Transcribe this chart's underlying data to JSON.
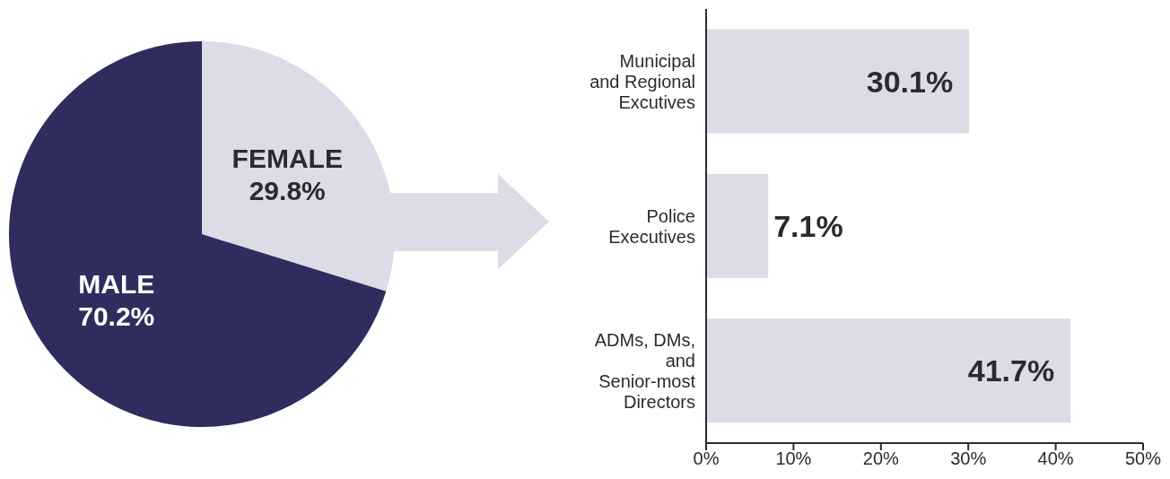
{
  "chart_data": [
    {
      "type": "pie",
      "categories": [
        "FEMALE",
        "MALE"
      ],
      "values": [
        29.8,
        70.2
      ],
      "colors": [
        "#dddbe6",
        "#2e2d5e"
      ],
      "value_labels": [
        "29.8%",
        "70.2%"
      ],
      "legend": false
    },
    {
      "type": "bar",
      "orientation": "horizontal",
      "categories": [
        "Municipal and Regional Excutives",
        "Police Executives",
        "ADMs, DMs, and Senior-most Directors"
      ],
      "values": [
        30.1,
        7.1,
        41.7
      ],
      "color": "#dddbe6",
      "value_labels": [
        "30.1%",
        "7.1%",
        "41.7%"
      ],
      "xlim": [
        0,
        50
      ],
      "xticks": [
        {
          "value": 0,
          "label": "0%"
        },
        {
          "value": 10,
          "label": "10%"
        },
        {
          "value": 20,
          "label": "20%"
        },
        {
          "value": 30,
          "label": "30%"
        },
        {
          "value": 40,
          "label": "40%"
        },
        {
          "value": 50,
          "label": "50%"
        }
      ],
      "grid": false,
      "legend": false
    }
  ]
}
